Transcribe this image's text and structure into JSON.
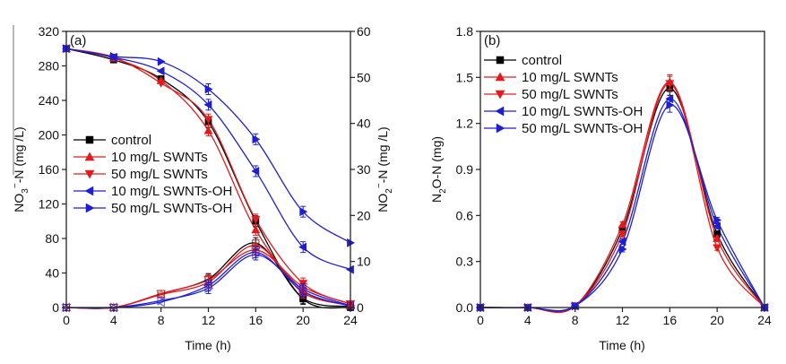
{
  "chart_data": [
    {
      "type": "line",
      "panel_label": "(a)",
      "xlabel": "Time (h)",
      "ylabel": "NO3−-N (mg /L)",
      "ylabel_parts": {
        "base": "NO",
        "sub": "3",
        "sup": "−",
        "rest": "-N (mg /L)"
      },
      "y2label": "NO2−-N (mg /L)",
      "y2label_parts": {
        "base": "NO",
        "sub": "2",
        "sup": "−",
        "rest": "-N (mg /L)"
      },
      "xlim": [
        0,
        24
      ],
      "ylim": [
        0,
        320
      ],
      "y2lim": [
        0,
        60
      ],
      "xticks": [
        0,
        4,
        8,
        12,
        16,
        20,
        24
      ],
      "yticks": [
        0,
        40,
        80,
        120,
        160,
        200,
        240,
        280,
        320
      ],
      "y2ticks": [
        0,
        10,
        20,
        30,
        40,
        50,
        60
      ],
      "grid": false,
      "legend_position": "center-left",
      "x": [
        0,
        4,
        8,
        12,
        16,
        20,
        24
      ],
      "series": [
        {
          "name": "control",
          "color": "#000000",
          "marker": "square",
          "nitrate": [
            300,
            287,
            265,
            215,
            100,
            10,
            0
          ],
          "nitrite": [
            0,
            0,
            3.0,
            6.2,
            14.0,
            2.0,
            0.2
          ]
        },
        {
          "name": "10 mg/L SWNTs",
          "color": "#e31a1c",
          "marker": "triangle-up",
          "nitrate": [
            300,
            289,
            263,
            205,
            90,
            20,
            2
          ],
          "nitrite": [
            0,
            0,
            2.8,
            5.5,
            13.5,
            3.2,
            0.5
          ]
        },
        {
          "name": "50 mg/L SWNTs",
          "color": "#e31a1c",
          "marker": "triangle-down",
          "nitrate": [
            300,
            290,
            260,
            218,
            102,
            28,
            4
          ],
          "nitrite": [
            0,
            0,
            3.0,
            6.0,
            12.5,
            4.5,
            0.8
          ]
        },
        {
          "name": "10 mg/L SWNTs-OH",
          "color": "#1f1fd0",
          "marker": "triangle-left",
          "nitrate": [
            300,
            290,
            274,
            235,
            158,
            70,
            44
          ],
          "nitrite": [
            0,
            0,
            1.2,
            4.8,
            12.0,
            3.5,
            0.3
          ]
        },
        {
          "name": "50 mg/L SWNTs-OH",
          "color": "#1f1fd0",
          "marker": "triangle-right",
          "nitrate": [
            300,
            291,
            285,
            253,
            195,
            111,
            75
          ],
          "nitrite": [
            0,
            0,
            1.5,
            4.2,
            11.5,
            4.0,
            0.4
          ]
        }
      ]
    },
    {
      "type": "line",
      "panel_label": "(b)",
      "xlabel": "Time (h)",
      "ylabel": "N2O-N (mg)",
      "ylabel_parts": {
        "base": "N",
        "sub": "2",
        "rest": "O-N (mg)"
      },
      "xlim": [
        0,
        24
      ],
      "ylim": [
        0,
        1.8
      ],
      "xticks": [
        0,
        4,
        8,
        12,
        16,
        20,
        24
      ],
      "yticks": [
        "0.0",
        "0.3",
        "0.6",
        "0.9",
        "1.2",
        "1.5",
        "1.8"
      ],
      "grid": false,
      "legend_position": "top-left",
      "x": [
        0,
        4,
        8,
        12,
        16,
        20,
        24
      ],
      "series": [
        {
          "name": "control",
          "color": "#000000",
          "marker": "square",
          "values": [
            0.0,
            0.0,
            0.01,
            0.51,
            1.43,
            0.48,
            0.0
          ]
        },
        {
          "name": "10 mg/L SWNTs",
          "color": "#e31a1c",
          "marker": "triangle-up",
          "values": [
            0.0,
            0.0,
            0.01,
            0.54,
            1.47,
            0.45,
            0.0
          ]
        },
        {
          "name": "50 mg/L SWNTs",
          "color": "#e31a1c",
          "marker": "triangle-down",
          "values": [
            0.0,
            0.0,
            0.01,
            0.48,
            1.46,
            0.39,
            0.0
          ]
        },
        {
          "name": "10 mg/L SWNTs-OH",
          "color": "#1f1fd0",
          "marker": "triangle-left",
          "values": [
            0.0,
            0.0,
            0.01,
            0.43,
            1.36,
            0.53,
            0.0
          ]
        },
        {
          "name": "50 mg/L SWNTs-OH",
          "color": "#1f1fd0",
          "marker": "triangle-right",
          "values": [
            0.0,
            0.0,
            0.01,
            0.38,
            1.32,
            0.57,
            0.0
          ]
        }
      ]
    }
  ]
}
